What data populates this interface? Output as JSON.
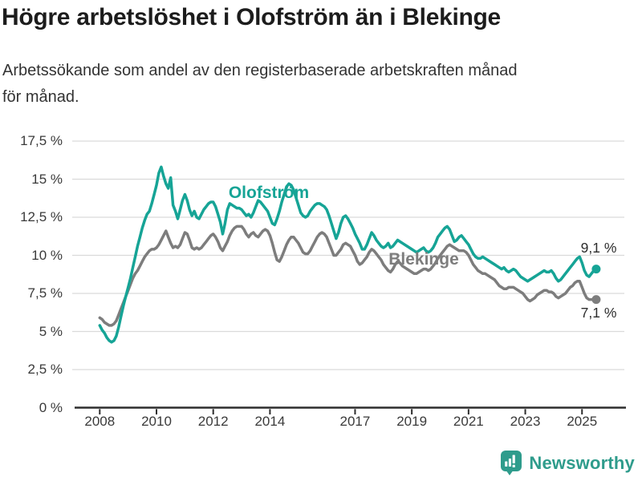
{
  "title": "Högre arbetslöshet i Olofström än i Blekinge",
  "subtitle_lines": [
    "Arbetssökande som andel av den registerbaserade arbetskraften månad",
    "för månad."
  ],
  "branding": {
    "logo_text": "Newsworthy",
    "logo_icon": "bar-chart-speech-bubble-icon",
    "brand_color": "#2f9c8c"
  },
  "chart_data": {
    "type": "line",
    "x_unit": "month",
    "x_start_year": 2008,
    "x_end_label": "mid-2025",
    "points_per_year": 12,
    "ylim": [
      0,
      17.5
    ],
    "grid": true,
    "grid_color": "#dadada",
    "axis_color": "#2d2d2d",
    "y_ticks": [
      {
        "value": 17.5,
        "label": "17,5 %"
      },
      {
        "value": 15,
        "label": "15 %"
      },
      {
        "value": 12.5,
        "label": "12,5 %"
      },
      {
        "value": 10,
        "label": "10 %"
      },
      {
        "value": 7.5,
        "label": "7,5 %"
      },
      {
        "value": 5,
        "label": "5 %"
      },
      {
        "value": 2.5,
        "label": "2,5 %"
      },
      {
        "value": 0,
        "label": "0 %"
      }
    ],
    "x_ticks": [
      {
        "year": 2008,
        "label": "2008"
      },
      {
        "year": 2010,
        "label": "2010"
      },
      {
        "year": 2012,
        "label": "2012"
      },
      {
        "year": 2014,
        "label": "2014"
      },
      {
        "year": 2017,
        "label": "2017"
      },
      {
        "year": 2019,
        "label": "2019"
      },
      {
        "year": 2021,
        "label": "2021"
      },
      {
        "year": 2023,
        "label": "2023"
      },
      {
        "year": 2025,
        "label": "2025"
      }
    ],
    "series": [
      {
        "name": "Olofström",
        "color": "#16a496",
        "end_label": "9,1 %",
        "end_value": 9.1,
        "values": [
          5.4,
          5.1,
          4.9,
          4.6,
          4.4,
          4.3,
          4.4,
          4.7,
          5.3,
          6.0,
          6.7,
          7.3,
          7.9,
          8.5,
          9.2,
          9.9,
          10.6,
          11.2,
          11.8,
          12.3,
          12.7,
          12.9,
          13.4,
          14.0,
          14.6,
          15.4,
          15.8,
          15.2,
          14.7,
          14.4,
          15.1,
          13.3,
          12.9,
          12.4,
          13.0,
          13.6,
          14.0,
          13.6,
          13.0,
          12.6,
          12.9,
          12.5,
          12.4,
          12.7,
          13.0,
          13.2,
          13.4,
          13.5,
          13.5,
          13.2,
          12.7,
          12.2,
          11.4,
          12.1,
          13.0,
          13.4,
          13.3,
          13.2,
          13.1,
          13.1,
          13.0,
          12.8,
          12.6,
          12.7,
          12.5,
          12.8,
          13.2,
          13.6,
          13.5,
          13.3,
          13.1,
          12.9,
          12.5,
          12.1,
          12.0,
          12.4,
          12.9,
          13.5,
          14.0,
          14.5,
          14.7,
          14.6,
          14.3,
          13.8,
          13.3,
          12.8,
          12.6,
          12.5,
          12.6,
          12.9,
          13.1,
          13.3,
          13.4,
          13.4,
          13.3,
          13.2,
          13.0,
          12.6,
          12.1,
          11.6,
          11.1,
          11.5,
          12.1,
          12.5,
          12.6,
          12.4,
          12.1,
          11.8,
          11.4,
          11.1,
          10.8,
          10.4,
          10.4,
          10.7,
          11.1,
          11.5,
          11.3,
          11.0,
          10.8,
          10.6,
          10.5,
          10.6,
          10.8,
          10.5,
          10.6,
          10.8,
          11.0,
          10.9,
          10.8,
          10.7,
          10.6,
          10.5,
          10.4,
          10.3,
          10.2,
          10.3,
          10.4,
          10.5,
          10.3,
          10.2,
          10.3,
          10.5,
          10.8,
          11.2,
          11.4,
          11.6,
          11.8,
          11.9,
          11.7,
          11.3,
          10.9,
          11.0,
          11.2,
          11.3,
          11.1,
          10.9,
          10.7,
          10.4,
          10.1,
          9.9,
          9.8,
          9.8,
          9.9,
          9.8,
          9.7,
          9.6,
          9.5,
          9.4,
          9.3,
          9.2,
          9.1,
          9.2,
          9.0,
          8.9,
          9.0,
          9.1,
          9.0,
          8.8,
          8.6,
          8.5,
          8.4,
          8.3,
          8.4,
          8.5,
          8.6,
          8.7,
          8.8,
          8.9,
          9.0,
          8.9,
          8.9,
          9.0,
          8.8,
          8.5,
          8.3,
          8.4,
          8.6,
          8.8,
          9.0,
          9.2,
          9.4,
          9.6,
          9.8,
          9.9,
          9.5,
          9.0,
          8.7,
          8.6,
          8.8,
          9.0,
          9.1
        ]
      },
      {
        "name": "Blekinge",
        "color": "#7d7d7d",
        "end_label": "7,1 %",
        "end_value": 7.1,
        "values": [
          5.9,
          5.8,
          5.6,
          5.5,
          5.4,
          5.4,
          5.5,
          5.7,
          6.1,
          6.5,
          6.9,
          7.3,
          7.7,
          8.1,
          8.5,
          8.8,
          9.0,
          9.3,
          9.6,
          9.9,
          10.1,
          10.3,
          10.4,
          10.4,
          10.5,
          10.7,
          11.0,
          11.3,
          11.6,
          11.2,
          10.8,
          10.5,
          10.6,
          10.5,
          10.7,
          11.1,
          11.5,
          11.4,
          11.0,
          10.5,
          10.4,
          10.5,
          10.4,
          10.5,
          10.7,
          10.9,
          11.1,
          11.3,
          11.4,
          11.2,
          10.9,
          10.5,
          10.3,
          10.6,
          10.9,
          11.3,
          11.6,
          11.8,
          11.9,
          11.9,
          11.9,
          11.7,
          11.4,
          11.2,
          11.4,
          11.5,
          11.3,
          11.2,
          11.4,
          11.6,
          11.7,
          11.6,
          11.3,
          10.8,
          10.2,
          9.7,
          9.6,
          9.9,
          10.3,
          10.7,
          11.0,
          11.2,
          11.2,
          11.0,
          10.8,
          10.5,
          10.2,
          10.1,
          10.1,
          10.3,
          10.6,
          10.9,
          11.2,
          11.4,
          11.5,
          11.4,
          11.2,
          10.8,
          10.4,
          10.0,
          10.0,
          10.2,
          10.4,
          10.7,
          10.8,
          10.7,
          10.6,
          10.3,
          10.0,
          9.6,
          9.4,
          9.5,
          9.7,
          9.9,
          10.2,
          10.4,
          10.3,
          10.1,
          9.9,
          9.7,
          9.4,
          9.2,
          9.0,
          8.9,
          9.1,
          9.4,
          9.6,
          9.5,
          9.3,
          9.2,
          9.1,
          9.0,
          8.9,
          8.8,
          8.8,
          8.9,
          9.0,
          9.1,
          9.1,
          9.0,
          9.1,
          9.3,
          9.5,
          9.8,
          10.0,
          10.2,
          10.4,
          10.6,
          10.7,
          10.6,
          10.5,
          10.4,
          10.3,
          10.3,
          10.3,
          10.2,
          10.0,
          9.7,
          9.4,
          9.2,
          9.0,
          8.9,
          8.8,
          8.8,
          8.7,
          8.6,
          8.5,
          8.4,
          8.2,
          8.0,
          7.9,
          7.8,
          7.8,
          7.9,
          7.9,
          7.9,
          7.8,
          7.7,
          7.6,
          7.5,
          7.3,
          7.1,
          7.0,
          7.1,
          7.2,
          7.4,
          7.5,
          7.6,
          7.7,
          7.7,
          7.6,
          7.6,
          7.5,
          7.3,
          7.2,
          7.3,
          7.4,
          7.5,
          7.7,
          7.9,
          8.0,
          8.2,
          8.3,
          8.3,
          7.9,
          7.5,
          7.2,
          7.1,
          7.1,
          7.1,
          7.1
        ]
      }
    ]
  }
}
